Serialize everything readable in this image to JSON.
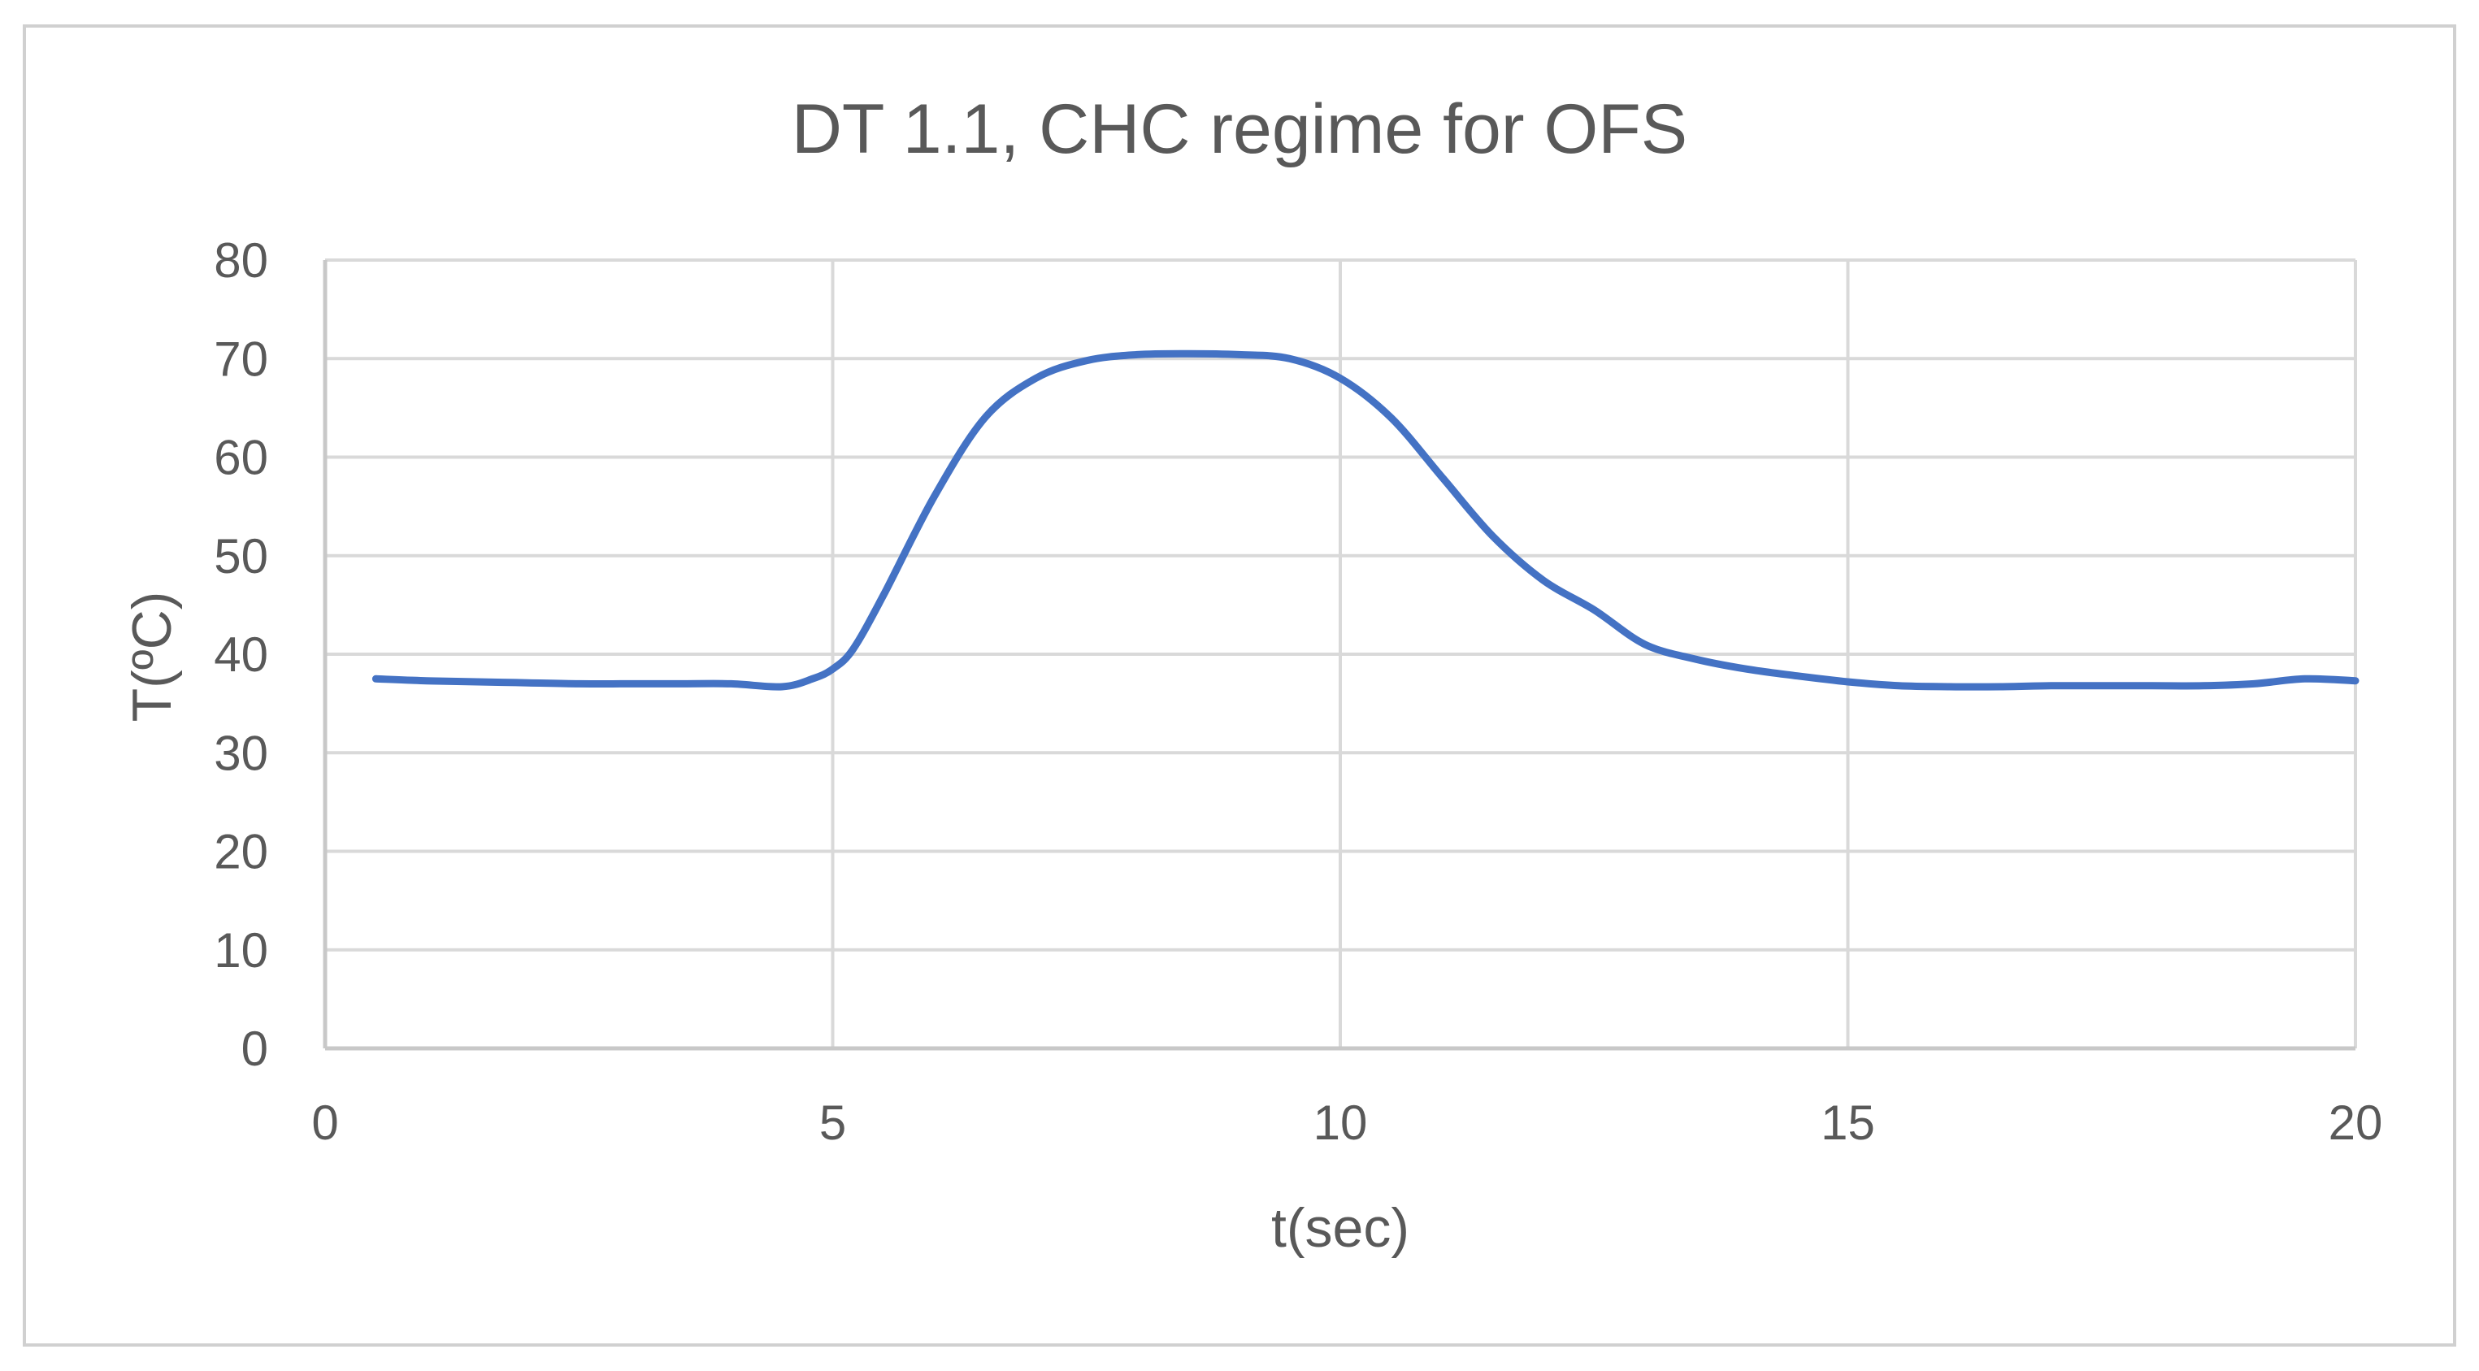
{
  "chart_data": {
    "type": "line",
    "title": "DT 1.1, CHC regime for OFS",
    "xlabel": "t(sec)",
    "ylabel": "T(ºC)",
    "xlim": [
      0,
      20
    ],
    "ylim": [
      0,
      80
    ],
    "x_ticks": [
      "0",
      "5",
      "10",
      "15",
      "20"
    ],
    "y_ticks": [
      "0",
      "10",
      "20",
      "30",
      "40",
      "50",
      "60",
      "70",
      "80"
    ],
    "grid": true,
    "legend": "none",
    "series": [
      {
        "color": "#4472C4",
        "points": [
          [
            0.5,
            37.5
          ],
          [
            1.0,
            37.3
          ],
          [
            1.5,
            37.2
          ],
          [
            2.0,
            37.1
          ],
          [
            2.5,
            37.0
          ],
          [
            3.0,
            37.0
          ],
          [
            3.5,
            37.0
          ],
          [
            4.0,
            37.0
          ],
          [
            4.5,
            36.7
          ],
          [
            4.8,
            37.5
          ],
          [
            5.0,
            38.5
          ],
          [
            5.2,
            40.5
          ],
          [
            5.5,
            46.0
          ],
          [
            6.0,
            56.0
          ],
          [
            6.5,
            64.0
          ],
          [
            7.0,
            68.0
          ],
          [
            7.5,
            69.8
          ],
          [
            8.0,
            70.4
          ],
          [
            8.5,
            70.5
          ],
          [
            9.0,
            70.4
          ],
          [
            9.5,
            70.0
          ],
          [
            10.0,
            68.0
          ],
          [
            10.5,
            64.0
          ],
          [
            11.0,
            58.0
          ],
          [
            11.5,
            52.0
          ],
          [
            12.0,
            47.5
          ],
          [
            12.5,
            44.5
          ],
          [
            13.0,
            41.0
          ],
          [
            13.5,
            39.5
          ],
          [
            14.0,
            38.5
          ],
          [
            14.5,
            37.8
          ],
          [
            15.0,
            37.2
          ],
          [
            15.5,
            36.8
          ],
          [
            16.0,
            36.7
          ],
          [
            16.5,
            36.7
          ],
          [
            17.0,
            36.8
          ],
          [
            17.5,
            36.8
          ],
          [
            18.0,
            36.8
          ],
          [
            18.5,
            36.8
          ],
          [
            19.0,
            37.0
          ],
          [
            19.5,
            37.5
          ],
          [
            20.0,
            37.3
          ]
        ]
      }
    ]
  }
}
